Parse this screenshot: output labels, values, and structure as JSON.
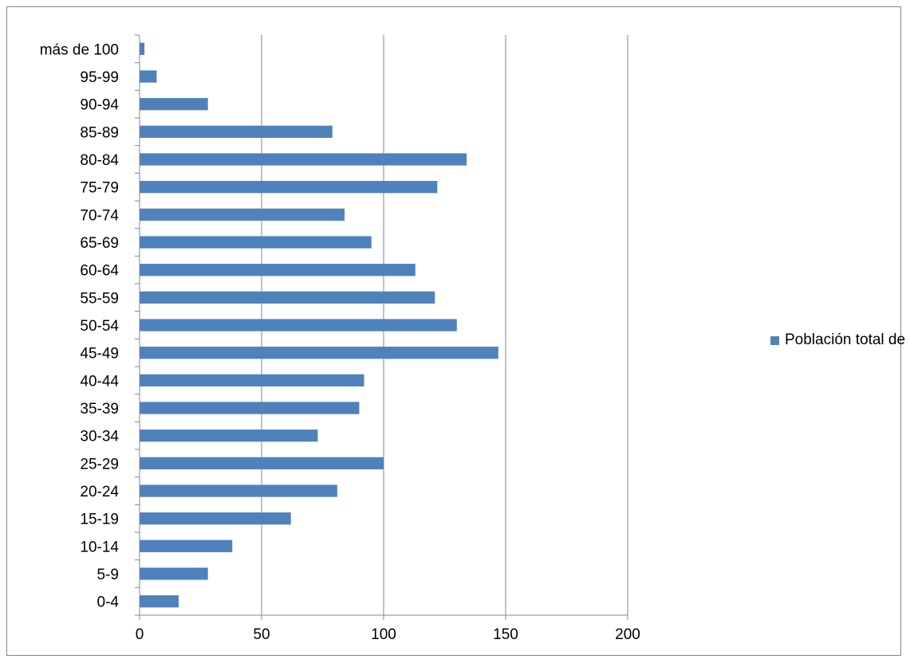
{
  "chart_data": {
    "type": "bar",
    "orientation": "horizontal",
    "categories": [
      "0-4",
      "5-9",
      "10-14",
      "15-19",
      "20-24",
      "25-29",
      "30-34",
      "35-39",
      "40-44",
      "45-49",
      "50-54",
      "55-59",
      "60-64",
      "65-69",
      "70-74",
      "75-79",
      "80-84",
      "85-89",
      "90-94",
      "95-99",
      "más de 100"
    ],
    "series": [
      {
        "name": "Población total de la RB",
        "color": "#4f81bd",
        "values": [
          16,
          28,
          38,
          62,
          81,
          100,
          73,
          90,
          92,
          147,
          130,
          121,
          113,
          95,
          84,
          122,
          134,
          79,
          28,
          7,
          2
        ]
      }
    ],
    "xlim": [
      0,
      200
    ],
    "xticks": [
      0,
      50,
      100,
      150,
      200
    ],
    "grid": "vertical",
    "legend_position": "right"
  }
}
